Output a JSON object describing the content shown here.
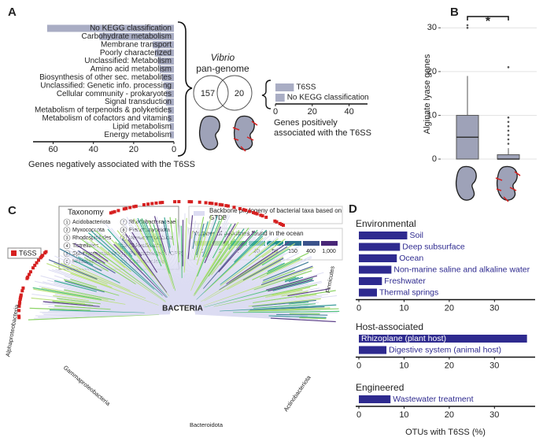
{
  "panels": [
    "A",
    "B",
    "C",
    "D"
  ],
  "chart_data": [
    {
      "type": "hbar",
      "label_side": "inside",
      "categories": [
        "No KEGG classification",
        "Carbohydrate metabolism",
        "Membrane transport",
        "Poorly characterized",
        "Unclassified: Metabolism",
        "Amino acid metabolism",
        "Biosynthesis of other sec. metabolites",
        "Unclassified: Genetic info. processing",
        "Cellular community - prokaryotes",
        "Signal transduction",
        "Metabolism of terpenoids & polyketides",
        "Metabolism of cofactors and vitamins",
        "Lipid metabolism",
        "Energy metabolism"
      ],
      "values": [
        63,
        37,
        10.5,
        9.5,
        8,
        7,
        6,
        5,
        4,
        4,
        3,
        3,
        2,
        2
      ],
      "color": "#a9adc4",
      "xlim": [
        70,
        0
      ],
      "xticks": [
        60,
        40,
        20,
        0
      ],
      "xlabel": "Genes negatively associated with the T6SS"
    },
    {
      "type": "hbar",
      "label_side": "after",
      "categories": [
        "T6SS",
        "No KEGG classification"
      ],
      "values": [
        10,
        5
      ],
      "color": "#a9adc4",
      "xlim": [
        0,
        50
      ],
      "xticks": [
        0,
        20,
        40
      ],
      "xlabel": "Genes positively associated with the T6SS"
    },
    {
      "type": "box",
      "categories": [
        null,
        null
      ],
      "ylabel": "Alginate lyase genes",
      "ylim": [
        -1.8,
        31.5
      ],
      "yticks": [
        0,
        10,
        20,
        30
      ],
      "grid": true,
      "color": "#9ea2b8",
      "annotation": "*",
      "series": [
        {
          "min": 0,
          "q1": 0,
          "median": 5,
          "q3": 10,
          "max": 19,
          "outliers": [
            30,
            30.6
          ]
        },
        {
          "min": 0,
          "q1": 0,
          "median": 0,
          "q3": 1,
          "max": 2.5,
          "outliers": [
            3.5,
            4.5,
            5.5,
            6.5,
            7.5,
            8.5,
            9.5,
            21
          ]
        }
      ]
    },
    {
      "type": "grouped_hbar",
      "xlabel": "OTUs with T6SS (%)",
      "xlim": [
        -0.7,
        39
      ],
      "xticks": [
        0,
        10,
        20,
        30
      ],
      "color": "#2e2a8f",
      "groups": [
        {
          "title": "Environmental",
          "categories": [
            "Soil",
            "Deep subsurface",
            "Ocean",
            "Non-marine saline and alkaline water",
            "Freshwater",
            "Thermal springs"
          ],
          "values": [
            10.7,
            9.1,
            8.4,
            7.2,
            5.1,
            4
          ]
        },
        {
          "title": "Host-associated",
          "categories": [
            "Rhizoplane (plant host)",
            "Digestive system (animal host)"
          ],
          "values": [
            37.2,
            6.1
          ]
        },
        {
          "title": "Engineered",
          "categories": [
            "Wastewater treatment"
          ],
          "values": [
            7
          ]
        }
      ]
    }
  ],
  "venn": {
    "title": "Vibrio",
    "subtitle": "pan-genome",
    "values": [
      157,
      20
    ]
  },
  "tree": {
    "legend_title": "Taxonomy",
    "taxa": [
      {
        "number": 1,
        "name": "Acidobacteriota"
      },
      {
        "number": 2,
        "name": "Myxococcota"
      },
      {
        "number": 3,
        "name": "Rhodospirillales"
      },
      {
        "number": 4,
        "name": "Tistrellales"
      },
      {
        "number": 5,
        "name": "Sphingomonadales"
      },
      {
        "number": 6,
        "name": "Rhizobiales"
      },
      {
        "number": 7,
        "name": "Rhodobacteraceae"
      },
      {
        "number": 8,
        "name": "Planctomycetota"
      },
      {
        "number": 9,
        "name": "Verrucomicrobiota"
      },
      {
        "number": 10,
        "name": "Chloroflexota"
      },
      {
        "number": 11,
        "name": "Patescibacteria (CPR)"
      },
      {
        "number": 12,
        "name": "Cyanobacteria"
      }
    ],
    "marker": "T6SS",
    "backbone": "Backbone phylogeny of bacterial taxa based on GTDB",
    "scale_title": "Number of genomes found in the ocean",
    "scale": [
      1,
      2,
      7,
      20,
      55,
      150,
      400,
      {
        "value": 1000,
        "label": "1,000"
      }
    ],
    "scale_colors": [
      "#b6e36a",
      "#7fd34e",
      "#3fbf6f",
      "#1fa187",
      "#20908d",
      "#2c728e",
      "#3b528b",
      "#482677"
    ],
    "root": "BACTERIA",
    "clades": [
      "Alphaproteobacteria",
      "Gammaproteobacteria",
      "Bacteroidota",
      "Actinobacteriota",
      "Firmicutes"
    ]
  }
}
